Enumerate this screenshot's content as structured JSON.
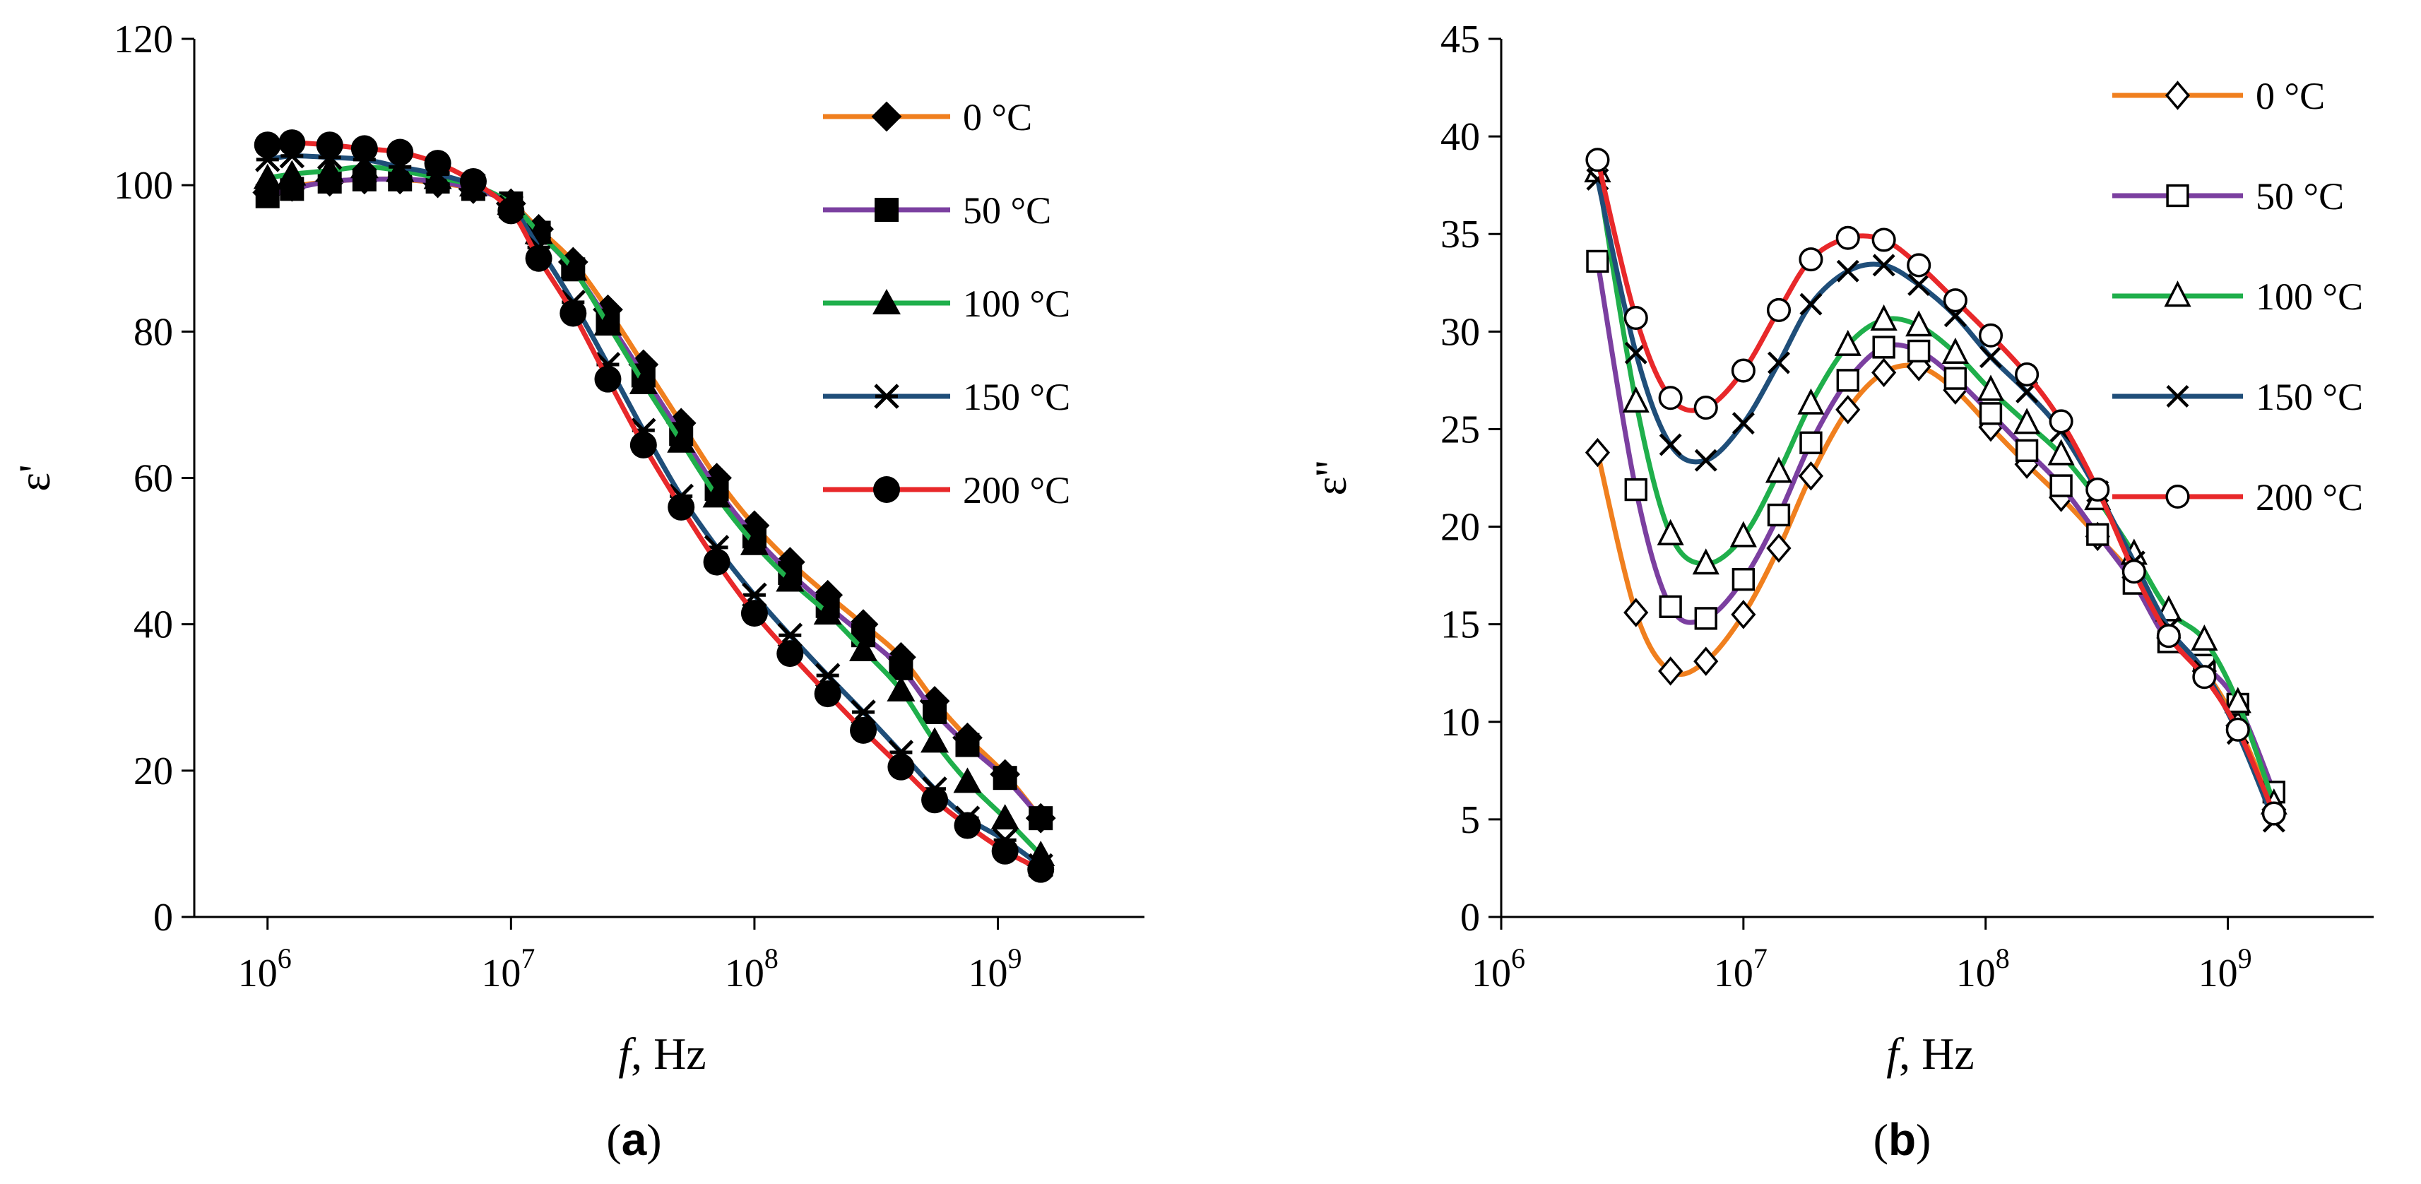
{
  "chart_data": [
    {
      "panel": "a",
      "type": "line",
      "caption": {
        "open": "(",
        "letter": "a",
        "close": ")"
      },
      "xlabel": {
        "italic": "f",
        "rest": ", Hz"
      },
      "ylabel": "ε'",
      "x_scale": "log",
      "xlim": [
        500000,
        4000000000
      ],
      "ylim": [
        0,
        120
      ],
      "y_ticks": [
        "0",
        "20",
        "40",
        "60",
        "80",
        "100",
        "120"
      ],
      "x_ticks": [
        {
          "base": "10",
          "exp": "6",
          "value": 1000000
        },
        {
          "base": "10",
          "exp": "7",
          "value": 10000000
        },
        {
          "base": "10",
          "exp": "8",
          "value": 100000000
        },
        {
          "base": "10",
          "exp": "9",
          "value": 1000000000
        }
      ],
      "legend_position": "top-right",
      "x": [
        1000000,
        1260000,
        1800000,
        2500000,
        3500000,
        5000000,
        7000000,
        10000000,
        13000000,
        18000000,
        25000000,
        35000000,
        50000000,
        70000000,
        100000000,
        140000000,
        200000000,
        280000000,
        400000000,
        550000000,
        750000000,
        1070000000,
        1500000000
      ],
      "series": [
        {
          "name": "0 °C",
          "color": "#F07F1E",
          "marker": "diamond-filled",
          "values": [
            99,
            99.8,
            100.5,
            100.8,
            100.8,
            100.3,
            99.5,
            97.5,
            94,
            89.5,
            83,
            75.5,
            67.5,
            60,
            53.5,
            48.5,
            44,
            40,
            35.5,
            29.5,
            24.5,
            19.5,
            13.5
          ]
        },
        {
          "name": "50 °C",
          "color": "#7B3FA0",
          "marker": "square-filled",
          "values": [
            98.5,
            99.5,
            100.5,
            100.8,
            100.8,
            100.5,
            99.5,
            97.5,
            93.5,
            88.5,
            81.5,
            74,
            66,
            58.5,
            52,
            47,
            42.5,
            38.5,
            34,
            28,
            23.5,
            19,
            13.5
          ]
        },
        {
          "name": "100 °C",
          "color": "#1FAF4B",
          "marker": "triangle-filled",
          "values": [
            101,
            101.5,
            102,
            102.5,
            102,
            101,
            100,
            97.5,
            93.5,
            88.5,
            81,
            73,
            65,
            57.5,
            51,
            46,
            41.5,
            36.5,
            31,
            24,
            18.5,
            13.5,
            8.5
          ]
        },
        {
          "name": "150 °C",
          "color": "#1F4E79",
          "marker": "star-x",
          "values": [
            103.5,
            104,
            103.8,
            103.5,
            102.5,
            101.5,
            100,
            97,
            91.5,
            84,
            75.5,
            66.5,
            57.5,
            50.5,
            44,
            38.5,
            33,
            28,
            22.5,
            17.5,
            13.5,
            10.5,
            7
          ]
        },
        {
          "name": "200 °C",
          "color": "#E8282A",
          "marker": "circle-filled",
          "values": [
            105.5,
            105.8,
            105.5,
            105,
            104.5,
            103,
            100.5,
            96.5,
            90,
            82.5,
            73.5,
            64.5,
            56,
            48.5,
            41.5,
            36,
            30.5,
            25.5,
            20.5,
            16,
            12.5,
            9,
            6.5
          ]
        }
      ]
    },
    {
      "panel": "b",
      "type": "line",
      "caption": {
        "open": "(",
        "letter": "b",
        "close": ")"
      },
      "xlabel": {
        "italic": "f",
        "rest": ", Hz"
      },
      "ylabel": "ε''",
      "x_scale": "log",
      "xlim": [
        1000000,
        4000000000
      ],
      "ylim": [
        0,
        45
      ],
      "y_ticks": [
        "0",
        "5",
        "10",
        "15",
        "20",
        "25",
        "30",
        "35",
        "40",
        "45"
      ],
      "x_ticks": [
        {
          "base": "10",
          "exp": "6",
          "value": 1000000
        },
        {
          "base": "10",
          "exp": "7",
          "value": 10000000
        },
        {
          "base": "10",
          "exp": "8",
          "value": 100000000
        },
        {
          "base": "10",
          "exp": "9",
          "value": 1000000000
        }
      ],
      "legend_position": "top-right",
      "x": [
        2500000,
        3600000,
        5000000,
        7000000,
        10000000,
        14000000,
        19000000,
        27000000,
        38000000,
        53000000,
        75000000,
        105000000,
        148000000,
        205000000,
        290000000,
        410000000,
        570000000,
        800000000,
        1100000000,
        1550000000
      ],
      "series": [
        {
          "name": "0 °C",
          "color": "#F07F1E",
          "marker": "diamond-open",
          "values": [
            23.8,
            15.6,
            12.6,
            13.1,
            15.5,
            18.9,
            22.6,
            26.0,
            27.9,
            28.2,
            27.0,
            25.1,
            23.2,
            21.5,
            19.5,
            17.4,
            14.3,
            12.6,
            9.8,
            5.5
          ]
        },
        {
          "name": "50 °C",
          "color": "#7B3FA0",
          "marker": "square-open",
          "values": [
            33.6,
            21.9,
            15.9,
            15.3,
            17.3,
            20.6,
            24.3,
            27.5,
            29.2,
            29.0,
            27.6,
            25.8,
            23.9,
            22.1,
            19.6,
            17.1,
            14.1,
            12.9,
            10.9,
            6.4
          ]
        },
        {
          "name": "100 °C",
          "color": "#1FAF4B",
          "marker": "triangle-open",
          "values": [
            38.2,
            26.4,
            19.6,
            18.1,
            19.5,
            22.8,
            26.3,
            29.3,
            30.6,
            30.3,
            28.9,
            27.0,
            25.3,
            23.7,
            21.4,
            18.6,
            15.7,
            14.2,
            11.0,
            5.8
          ]
        },
        {
          "name": "150 °C",
          "color": "#1F4E79",
          "marker": "x",
          "values": [
            37.8,
            28.9,
            24.2,
            23.4,
            25.3,
            28.4,
            31.4,
            33.1,
            33.4,
            32.4,
            30.8,
            28.7,
            26.9,
            24.9,
            21.8,
            18.2,
            14.8,
            12.6,
            9.4,
            4.9
          ]
        },
        {
          "name": "200 °C",
          "color": "#E8282A",
          "marker": "circle-open",
          "values": [
            38.8,
            30.7,
            26.6,
            26.1,
            28.0,
            31.1,
            33.7,
            34.8,
            34.7,
            33.4,
            31.6,
            29.8,
            27.8,
            25.4,
            21.9,
            17.7,
            14.4,
            12.3,
            9.6,
            5.3
          ]
        }
      ]
    }
  ]
}
